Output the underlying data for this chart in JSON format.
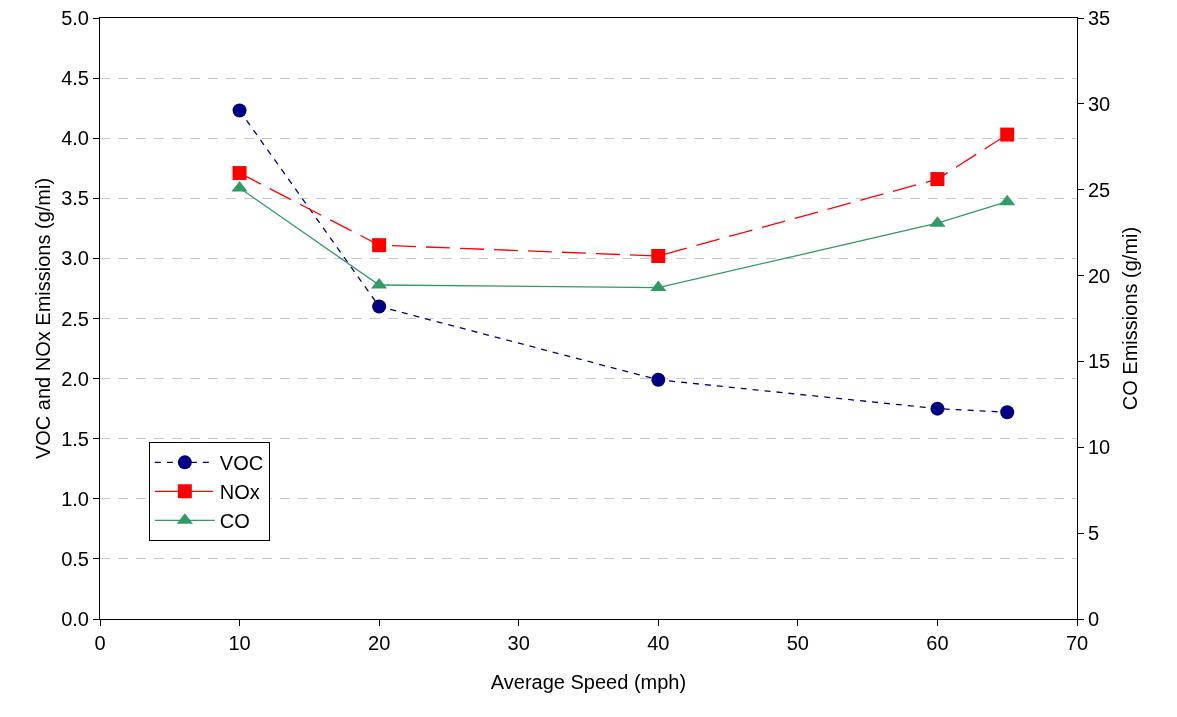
{
  "chart_data": {
    "type": "line",
    "xlabel": "Average Speed (mph)",
    "ylabel": "VOC and NOx Emissions (g/mi)",
    "y2label": "CO Emissions (g/mi)",
    "x": [
      10,
      20,
      40,
      60,
      65
    ],
    "xlim": [
      0,
      70
    ],
    "xticks": [
      0,
      10,
      20,
      30,
      40,
      50,
      60,
      70
    ],
    "ylim": [
      0,
      5
    ],
    "yticks": [
      {
        "value": 0,
        "label": "0.0"
      },
      {
        "value": 0.5,
        "label": "0.5"
      },
      {
        "value": 1,
        "label": "1.0"
      },
      {
        "value": 1.5,
        "label": "1.5"
      },
      {
        "value": 2,
        "label": "2.0"
      },
      {
        "value": 2.5,
        "label": "2.5"
      },
      {
        "value": 3,
        "label": "3.0"
      },
      {
        "value": 3.5,
        "label": "3.5"
      },
      {
        "value": 4,
        "label": "4.0"
      },
      {
        "value": 4.5,
        "label": "4.5"
      },
      {
        "value": 5,
        "label": "5.0"
      }
    ],
    "y2lim": [
      0,
      35
    ],
    "y2ticks": [
      0,
      5,
      10,
      15,
      20,
      25,
      30,
      35
    ],
    "grid": "y",
    "legend": "bottom left",
    "series": [
      {
        "name": "VOC",
        "color": "#000080",
        "values": [
          4.23,
          2.6,
          1.99,
          1.75,
          1.72
        ],
        "marker": "circle",
        "line_style": "dashed"
      },
      {
        "name": "NOx",
        "color": "#ff0000",
        "values": [
          3.71,
          3.11,
          3.02,
          3.66,
          4.03
        ],
        "marker": "square",
        "line_style": "dashed"
      },
      {
        "name": "CO",
        "color": "#339966",
        "values": [
          25.1,
          19.45,
          19.3,
          23.05,
          24.3
        ],
        "marker": "triangle",
        "line_style": "solid",
        "axis": "y2"
      }
    ]
  }
}
